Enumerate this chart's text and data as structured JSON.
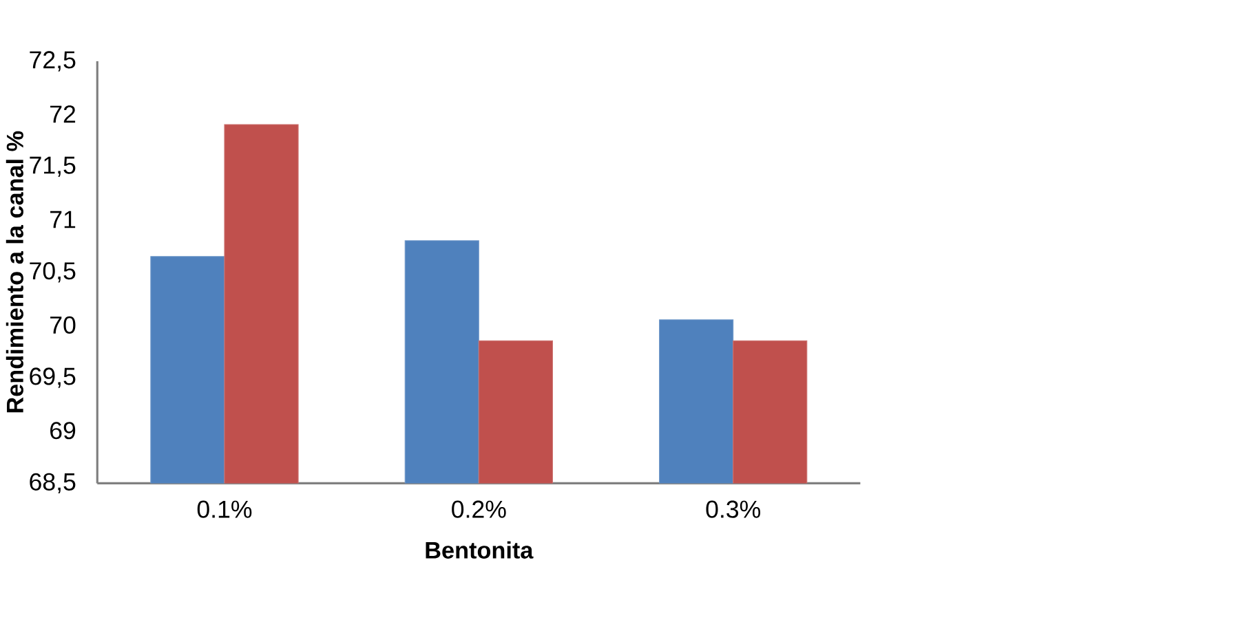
{
  "chart_data": {
    "type": "bar",
    "xlabel": "Bentonita",
    "ylabel": "Rendimiento a la canal %",
    "categories": [
      "0.1%",
      "0.2%",
      "0.3%"
    ],
    "series": [
      {
        "color": "#4f81bd",
        "values": [
          70.65,
          70.8,
          70.05
        ]
      },
      {
        "color": "#c0504d",
        "values": [
          71.9,
          69.85,
          69.85
        ]
      }
    ],
    "ylim": [
      68.5,
      72.5
    ],
    "yticks": [
      {
        "value": 68.5,
        "label": "68,5"
      },
      69,
      {
        "value": 69.5,
        "label": "69,5"
      },
      70,
      {
        "value": 70.5,
        "label": "70,5"
      },
      71,
      {
        "value": 71.5,
        "label": "71,5"
      },
      72,
      {
        "value": 72.5,
        "label": "72,5"
      }
    ]
  }
}
